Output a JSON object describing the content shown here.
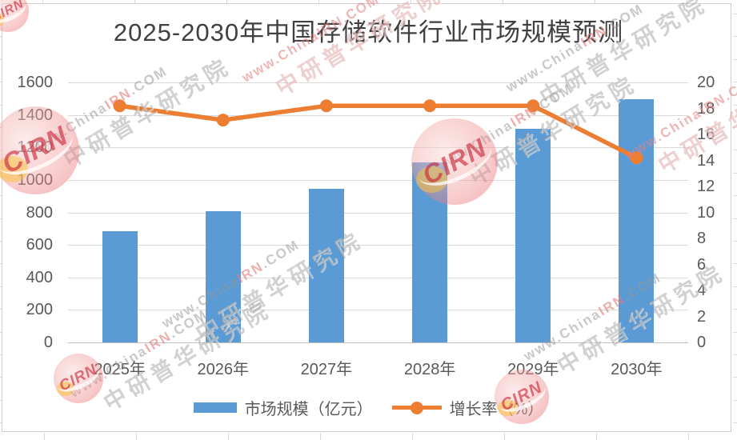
{
  "chart_data": {
    "type": "combo-bar-line",
    "title": "2025-2030年中国存储软件行业市场规模预测",
    "categories": [
      "2025年",
      "2026年",
      "2027年",
      "2028年",
      "2029年",
      "2030年"
    ],
    "series": [
      {
        "name": "市场规模（亿元）",
        "type": "bar",
        "axis": "left",
        "color": "#5B9BD5",
        "values": [
          685,
          805,
          945,
          1110,
          1315,
          1495
        ]
      },
      {
        "name": "增长率（%）",
        "type": "line",
        "axis": "right",
        "color": "#ED7D31",
        "values": [
          18.2,
          17.1,
          18.2,
          18.2,
          18.2,
          14.2
        ]
      }
    ],
    "left_axis": {
      "min": 0,
      "max": 1600,
      "step": 200,
      "ticks": [
        "1600",
        "1400",
        "1200",
        "1000",
        "800",
        "600",
        "400",
        "200",
        "0"
      ]
    },
    "right_axis": {
      "min": 0,
      "max": 20,
      "step": 2,
      "ticks": [
        "20",
        "18",
        "16",
        "14",
        "12",
        "10",
        "8",
        "6",
        "4",
        "2",
        "0"
      ]
    },
    "grid": true,
    "legend_position": "bottom"
  },
  "legend": {
    "items": [
      {
        "label": "市场规模（亿元）",
        "swatch": "bar",
        "color": "#5B9BD5"
      },
      {
        "label": "增长率（%）",
        "swatch": "line",
        "color": "#ED7D31"
      }
    ]
  },
  "watermark": {
    "url_prefix": "www.China",
    "url_mid": "IRN",
    "url_suffix": ".COM",
    "org_name": "中研普华研究院",
    "logo_text": "CIRN"
  },
  "colors": {
    "bar": "#5B9BD5",
    "line": "#ED7D31",
    "gridline": "#D9D9D9",
    "axis_text": "#595959",
    "title_text": "#404040"
  }
}
